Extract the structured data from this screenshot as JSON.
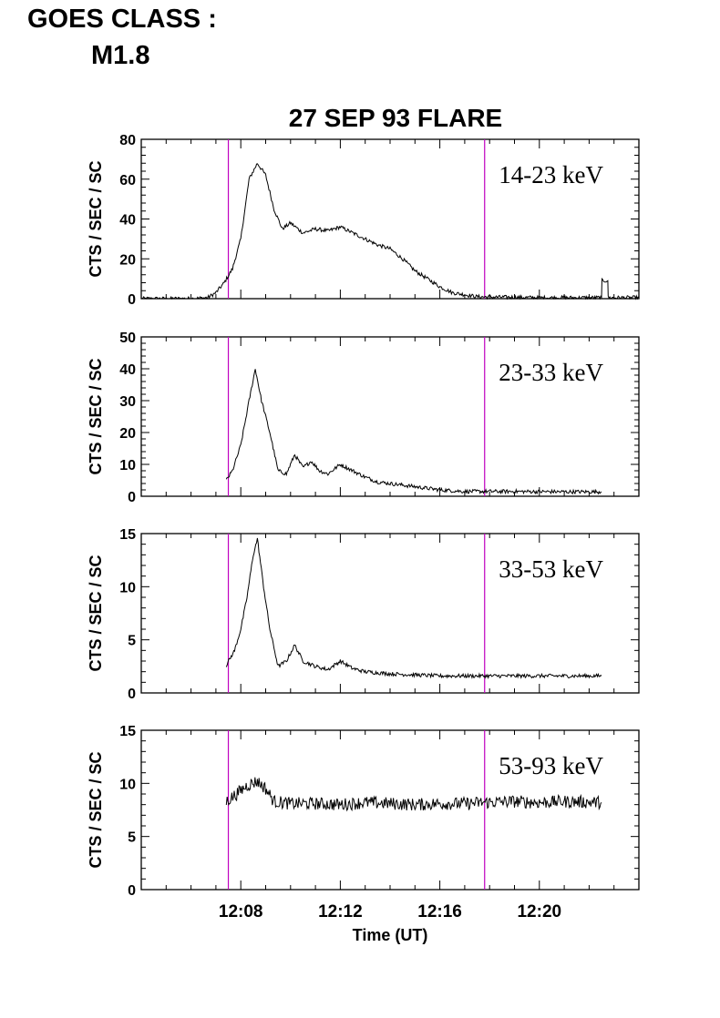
{
  "header": {
    "goes_label": "GOES CLASS :",
    "goes_class": "M1.8"
  },
  "colors": {
    "marker_lines": "#c000c0",
    "trace": "#000000",
    "axes": "#000000"
  },
  "chart_data": {
    "type": "line",
    "title": "27 SEP 93 FLARE",
    "xlabel": "Time (UT)",
    "xlim": [
      "12:04:00",
      "12:24:00"
    ],
    "x_tick_labels": [
      "12:08",
      "12:12",
      "12:16",
      "12:20"
    ],
    "vertical_markers": [
      "12:07:30",
      "12:17:48"
    ],
    "panels": [
      {
        "band": "14-23 keV",
        "ylabel": "CTS / SEC / SC",
        "ylim": [
          0,
          80
        ],
        "y_ticks": [
          0,
          20,
          40,
          60,
          80
        ],
        "series": [
          {
            "x": [
              "12:04:00",
              "12:05:00",
              "12:06:00",
              "12:06:40",
              "12:07:00",
              "12:07:20",
              "12:07:40",
              "12:08:00",
              "12:08:20",
              "12:08:40",
              "12:09:00",
              "12:09:20",
              "12:09:40",
              "12:10:00",
              "12:10:30",
              "12:11:00",
              "12:11:30",
              "12:12:00",
              "12:12:30",
              "12:13:00",
              "12:13:30",
              "12:14:00",
              "12:14:30",
              "12:15:00",
              "12:15:30",
              "12:16:00",
              "12:16:30",
              "12:17:00",
              "12:17:30",
              "12:18:00",
              "12:19:00",
              "12:20:00",
              "12:21:00",
              "12:22:00",
              "12:22:30",
              "12:22:31",
              "12:22:45",
              "12:22:46",
              "12:24:00"
            ],
            "values": [
              0,
              0,
              0,
              0.5,
              3,
              8,
              15,
              30,
              60,
              68,
              62,
              45,
              35,
              38,
              33,
              35,
              34,
              36,
              33,
              30,
              27,
              25,
              20,
              14,
              10,
              6,
              3,
              2,
              1,
              0.8,
              0.7,
              0.5,
              0.5,
              0.5,
              0.5,
              9,
              9,
              0.5,
              0.5
            ]
          }
        ]
      },
      {
        "band": "23-33 keV",
        "ylabel": "CTS / SEC / SC",
        "ylim": [
          0,
          50
        ],
        "y_ticks": [
          0,
          10,
          20,
          30,
          40,
          50
        ],
        "series": [
          {
            "x": [
              "12:07:25",
              "12:07:40",
              "12:08:00",
              "12:08:20",
              "12:08:35",
              "12:08:50",
              "12:09:10",
              "12:09:30",
              "12:09:50",
              "12:10:10",
              "12:10:30",
              "12:10:50",
              "12:11:10",
              "12:11:30",
              "12:12:00",
              "12:12:30",
              "12:13:00",
              "12:13:30",
              "12:14:00",
              "12:14:30",
              "12:15:00",
              "12:15:30",
              "12:16:00",
              "12:17:00",
              "12:17:45",
              "12:19:00",
              "12:21:00",
              "12:22:30"
            ],
            "values": [
              5,
              8,
              16,
              30,
              40,
              30,
              20,
              8,
              7,
              13,
              9,
              11,
              8,
              7,
              10,
              8,
              6,
              4.5,
              4,
              3.5,
              3,
              2.5,
              2,
              1.5,
              1.5,
              1.5,
              1.4,
              1.4
            ]
          }
        ]
      },
      {
        "band": "33-53 keV",
        "ylabel": "CTS / SEC / SC",
        "ylim": [
          0,
          15
        ],
        "y_ticks": [
          0,
          5,
          10,
          15
        ],
        "series": [
          {
            "x": [
              "12:07:25",
              "12:07:45",
              "12:08:00",
              "12:08:15",
              "12:08:30",
              "12:08:40",
              "12:08:55",
              "12:09:10",
              "12:09:30",
              "12:09:50",
              "12:10:10",
              "12:10:30",
              "12:11:00",
              "12:11:30",
              "12:12:00",
              "12:12:30",
              "12:13:00",
              "12:14:00",
              "12:15:00",
              "12:16:00",
              "12:17:00",
              "12:17:45",
              "12:19:00",
              "12:21:00",
              "12:22:30"
            ],
            "values": [
              2.6,
              4,
              6,
              9,
              13,
              14.5,
              10,
              6,
              2.5,
              3,
              4.5,
              3,
              2.5,
              2.2,
              3,
              2.3,
              2,
              1.8,
              1.7,
              1.6,
              1.6,
              1.6,
              1.6,
              1.6,
              1.6
            ]
          }
        ]
      },
      {
        "band": "53-93 keV",
        "ylabel": "CTS / SEC / SC",
        "ylim": [
          0,
          15
        ],
        "y_ticks": [
          0,
          5,
          10,
          15
        ],
        "series": [
          {
            "x": [
              "12:07:25",
              "12:07:50",
              "12:08:15",
              "12:08:40",
              "12:09:00",
              "12:09:20",
              "12:10:00",
              "12:11:00",
              "12:12:00",
              "12:13:00",
              "12:14:00",
              "12:15:00",
              "12:16:00",
              "12:17:00",
              "12:17:45",
              "12:19:00",
              "12:20:00",
              "12:21:00",
              "12:22:30"
            ],
            "values": [
              8.3,
              9,
              9.8,
              10.2,
              9.5,
              8.3,
              8.1,
              8.1,
              8.0,
              8.2,
              8.1,
              8.0,
              8.1,
              8.1,
              8.2,
              8.3,
              8.2,
              8.3,
              8.2
            ]
          }
        ]
      }
    ]
  }
}
